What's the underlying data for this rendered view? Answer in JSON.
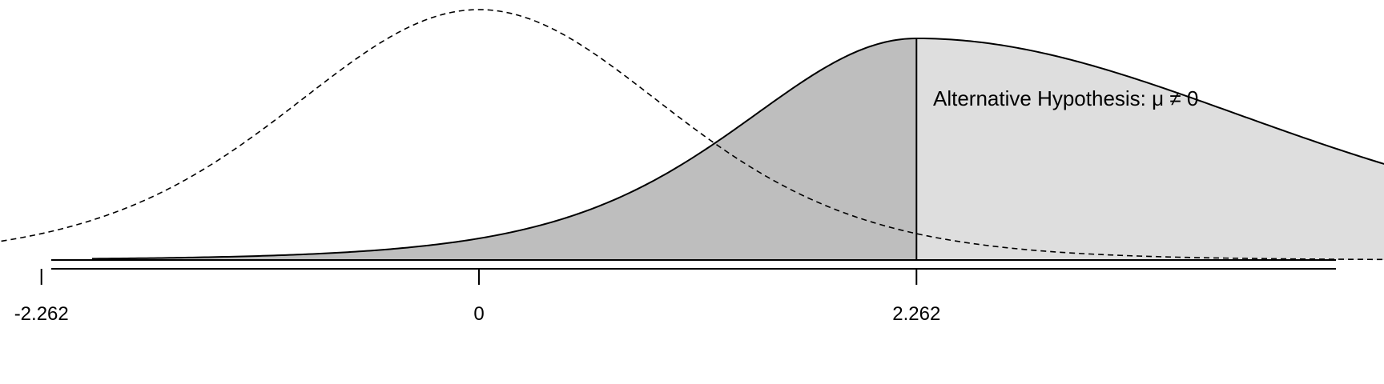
{
  "chart_data": {
    "type": "area",
    "title": "",
    "xlabel": "",
    "ylabel": "",
    "annotation": "Alternative Hypothesis: μ ≠ 0",
    "ticks": [
      {
        "value": -2.262,
        "label": "-2.262"
      },
      {
        "value": 0,
        "label": "0"
      },
      {
        "value": 2.262,
        "label": "2.262"
      }
    ],
    "xlim": [
      -5.5,
      11.0
    ],
    "null_distribution": {
      "type": "t",
      "center": 0,
      "line_style": "dashed"
    },
    "alternative_distribution": {
      "type": "noncentral-t",
      "center": 2.262,
      "line_style": "solid"
    },
    "critical_value": 2.262,
    "shading": {
      "below_critical": {
        "color": "#bebebe"
      },
      "above_critical": {
        "color": "#dedede"
      }
    },
    "grid": false,
    "legend": "none"
  }
}
